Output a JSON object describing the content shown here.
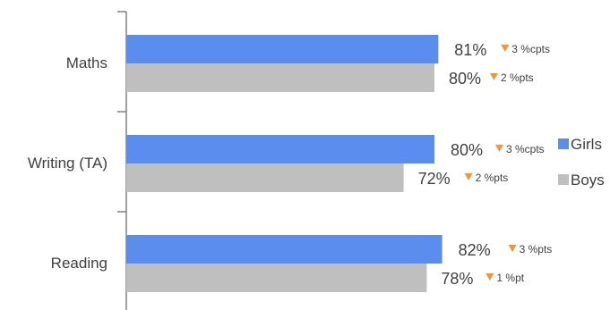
{
  "chart_data": {
    "type": "bar",
    "orientation": "horizontal",
    "categories": [
      "Maths",
      "Writing (TA)",
      "Reading"
    ],
    "series": [
      {
        "name": "Girls",
        "color": "#5B8DEF",
        "values": [
          81,
          80,
          82
        ],
        "value_labels": [
          "81%",
          "80%",
          "82%"
        ],
        "change_labels": [
          "3 %cpts",
          "3 %cpts",
          "3 %pts"
        ],
        "change_direction": [
          "down",
          "down",
          "down"
        ]
      },
      {
        "name": "Boys",
        "color": "#BFBFBF",
        "values": [
          80,
          72,
          78
        ],
        "value_labels": [
          "80%",
          "72%",
          "78%"
        ],
        "change_labels": [
          "2 %pts",
          "2 %pts",
          "1 %pt"
        ],
        "change_direction": [
          "down",
          "down",
          "down"
        ]
      }
    ],
    "xlim": [
      0,
      100
    ],
    "grid": false,
    "legend_position": "right",
    "marker_color": "#F0963C",
    "marker_glyph": "▼"
  }
}
